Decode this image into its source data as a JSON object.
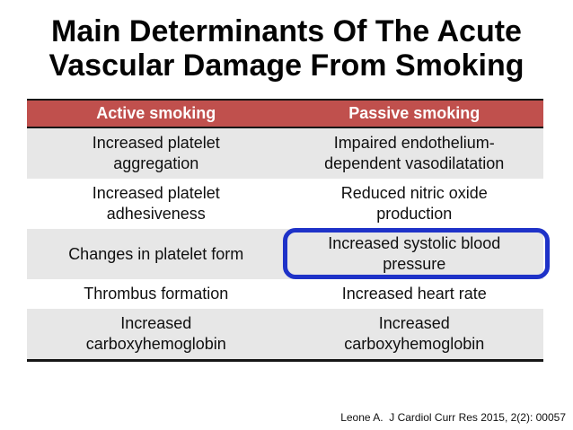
{
  "slide": {
    "title_lines": [
      "Main Determinants Of The Acute",
      "Vascular Damage From Smoking"
    ],
    "citation": "Leone A.  J Cardiol Curr Res 2015, 2(2): 00057"
  },
  "table": {
    "columns": [
      "Active smoking",
      "Passive smoking"
    ],
    "rows": [
      [
        "Increased platelet\naggregation",
        "Impaired endothelium-\ndependent vasodilatation"
      ],
      [
        "Increased platelet\nadhesiveness",
        "Reduced nitric oxide\nproduction"
      ],
      [
        "Changes in platelet form",
        "Increased systolic blood\npressure"
      ],
      [
        "Thrombus formation",
        "Increased heart rate"
      ],
      [
        "Increased\ncarboxyhemoglobin",
        "Increased\ncarboxyhemoglobin"
      ]
    ],
    "highlight": {
      "row": 2,
      "col": 1,
      "label": "Increased systolic blood pressure"
    }
  },
  "colors": {
    "header_bg": "#c0504d",
    "header_text": "#ffffff",
    "row_alt_bg": "#e7e7e7",
    "highlight_border": "#1e32c8",
    "table_border": "#161616"
  }
}
